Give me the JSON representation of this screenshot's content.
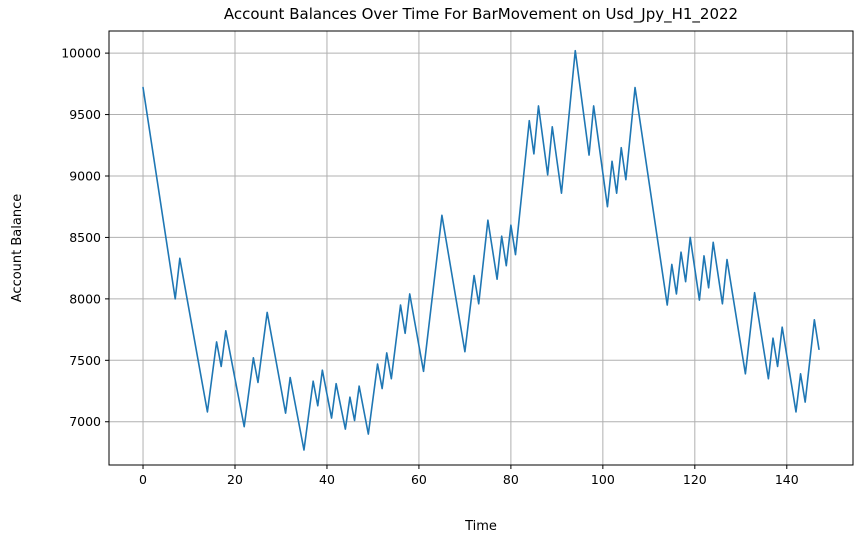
{
  "chart_data": {
    "type": "line",
    "title": "Account Balances Over Time For BarMovement on Usd_Jpy_H1_2022",
    "xlabel": "Time",
    "ylabel": "Account Balance",
    "xlim": [
      -7.4,
      154.4
    ],
    "ylim": [
      6648,
      10180
    ],
    "xticks": [
      0,
      20,
      40,
      60,
      80,
      100,
      120,
      140
    ],
    "yticks": [
      7000,
      7500,
      8000,
      8500,
      9000,
      9500,
      10000
    ],
    "grid": true,
    "line_color": "#1f77b4",
    "series": [
      {
        "points": [
          [
            0,
            9720
          ],
          [
            7,
            8000
          ],
          [
            8,
            8330
          ],
          [
            14,
            7080
          ],
          [
            16,
            7650
          ],
          [
            17,
            7450
          ],
          [
            18,
            7740
          ],
          [
            22,
            6960
          ],
          [
            24,
            7520
          ],
          [
            25,
            7320
          ],
          [
            27,
            7890
          ],
          [
            31,
            7070
          ],
          [
            32,
            7360
          ],
          [
            35,
            6770
          ],
          [
            37,
            7330
          ],
          [
            38,
            7130
          ],
          [
            39,
            7420
          ],
          [
            41,
            7030
          ],
          [
            42,
            7310
          ],
          [
            44,
            6940
          ],
          [
            45,
            7200
          ],
          [
            46,
            7010
          ],
          [
            47,
            7290
          ],
          [
            49,
            6900
          ],
          [
            51,
            7470
          ],
          [
            52,
            7270
          ],
          [
            53,
            7560
          ],
          [
            54,
            7350
          ],
          [
            56,
            7950
          ],
          [
            57,
            7720
          ],
          [
            58,
            8040
          ],
          [
            61,
            7410
          ],
          [
            65,
            8680
          ],
          [
            70,
            7570
          ],
          [
            72,
            8190
          ],
          [
            73,
            7960
          ],
          [
            75,
            8640
          ],
          [
            77,
            8160
          ],
          [
            78,
            8510
          ],
          [
            79,
            8270
          ],
          [
            80,
            8600
          ],
          [
            81,
            8360
          ],
          [
            84,
            9450
          ],
          [
            85,
            9180
          ],
          [
            86,
            9570
          ],
          [
            88,
            9010
          ],
          [
            89,
            9400
          ],
          [
            91,
            8860
          ],
          [
            94,
            10020
          ],
          [
            97,
            9170
          ],
          [
            98,
            9570
          ],
          [
            101,
            8750
          ],
          [
            102,
            9120
          ],
          [
            103,
            8860
          ],
          [
            104,
            9230
          ],
          [
            105,
            8970
          ],
          [
            107,
            9720
          ],
          [
            114,
            7950
          ],
          [
            115,
            8280
          ],
          [
            116,
            8040
          ],
          [
            117,
            8380
          ],
          [
            118,
            8140
          ],
          [
            119,
            8500
          ],
          [
            121,
            7990
          ],
          [
            122,
            8350
          ],
          [
            123,
            8090
          ],
          [
            124,
            8460
          ],
          [
            126,
            7960
          ],
          [
            127,
            8320
          ],
          [
            131,
            7390
          ],
          [
            133,
            8050
          ],
          [
            136,
            7350
          ],
          [
            137,
            7680
          ],
          [
            138,
            7450
          ],
          [
            139,
            7770
          ],
          [
            142,
            7080
          ],
          [
            143,
            7390
          ],
          [
            144,
            7160
          ],
          [
            146,
            7830
          ],
          [
            147,
            7590
          ]
        ]
      }
    ]
  }
}
